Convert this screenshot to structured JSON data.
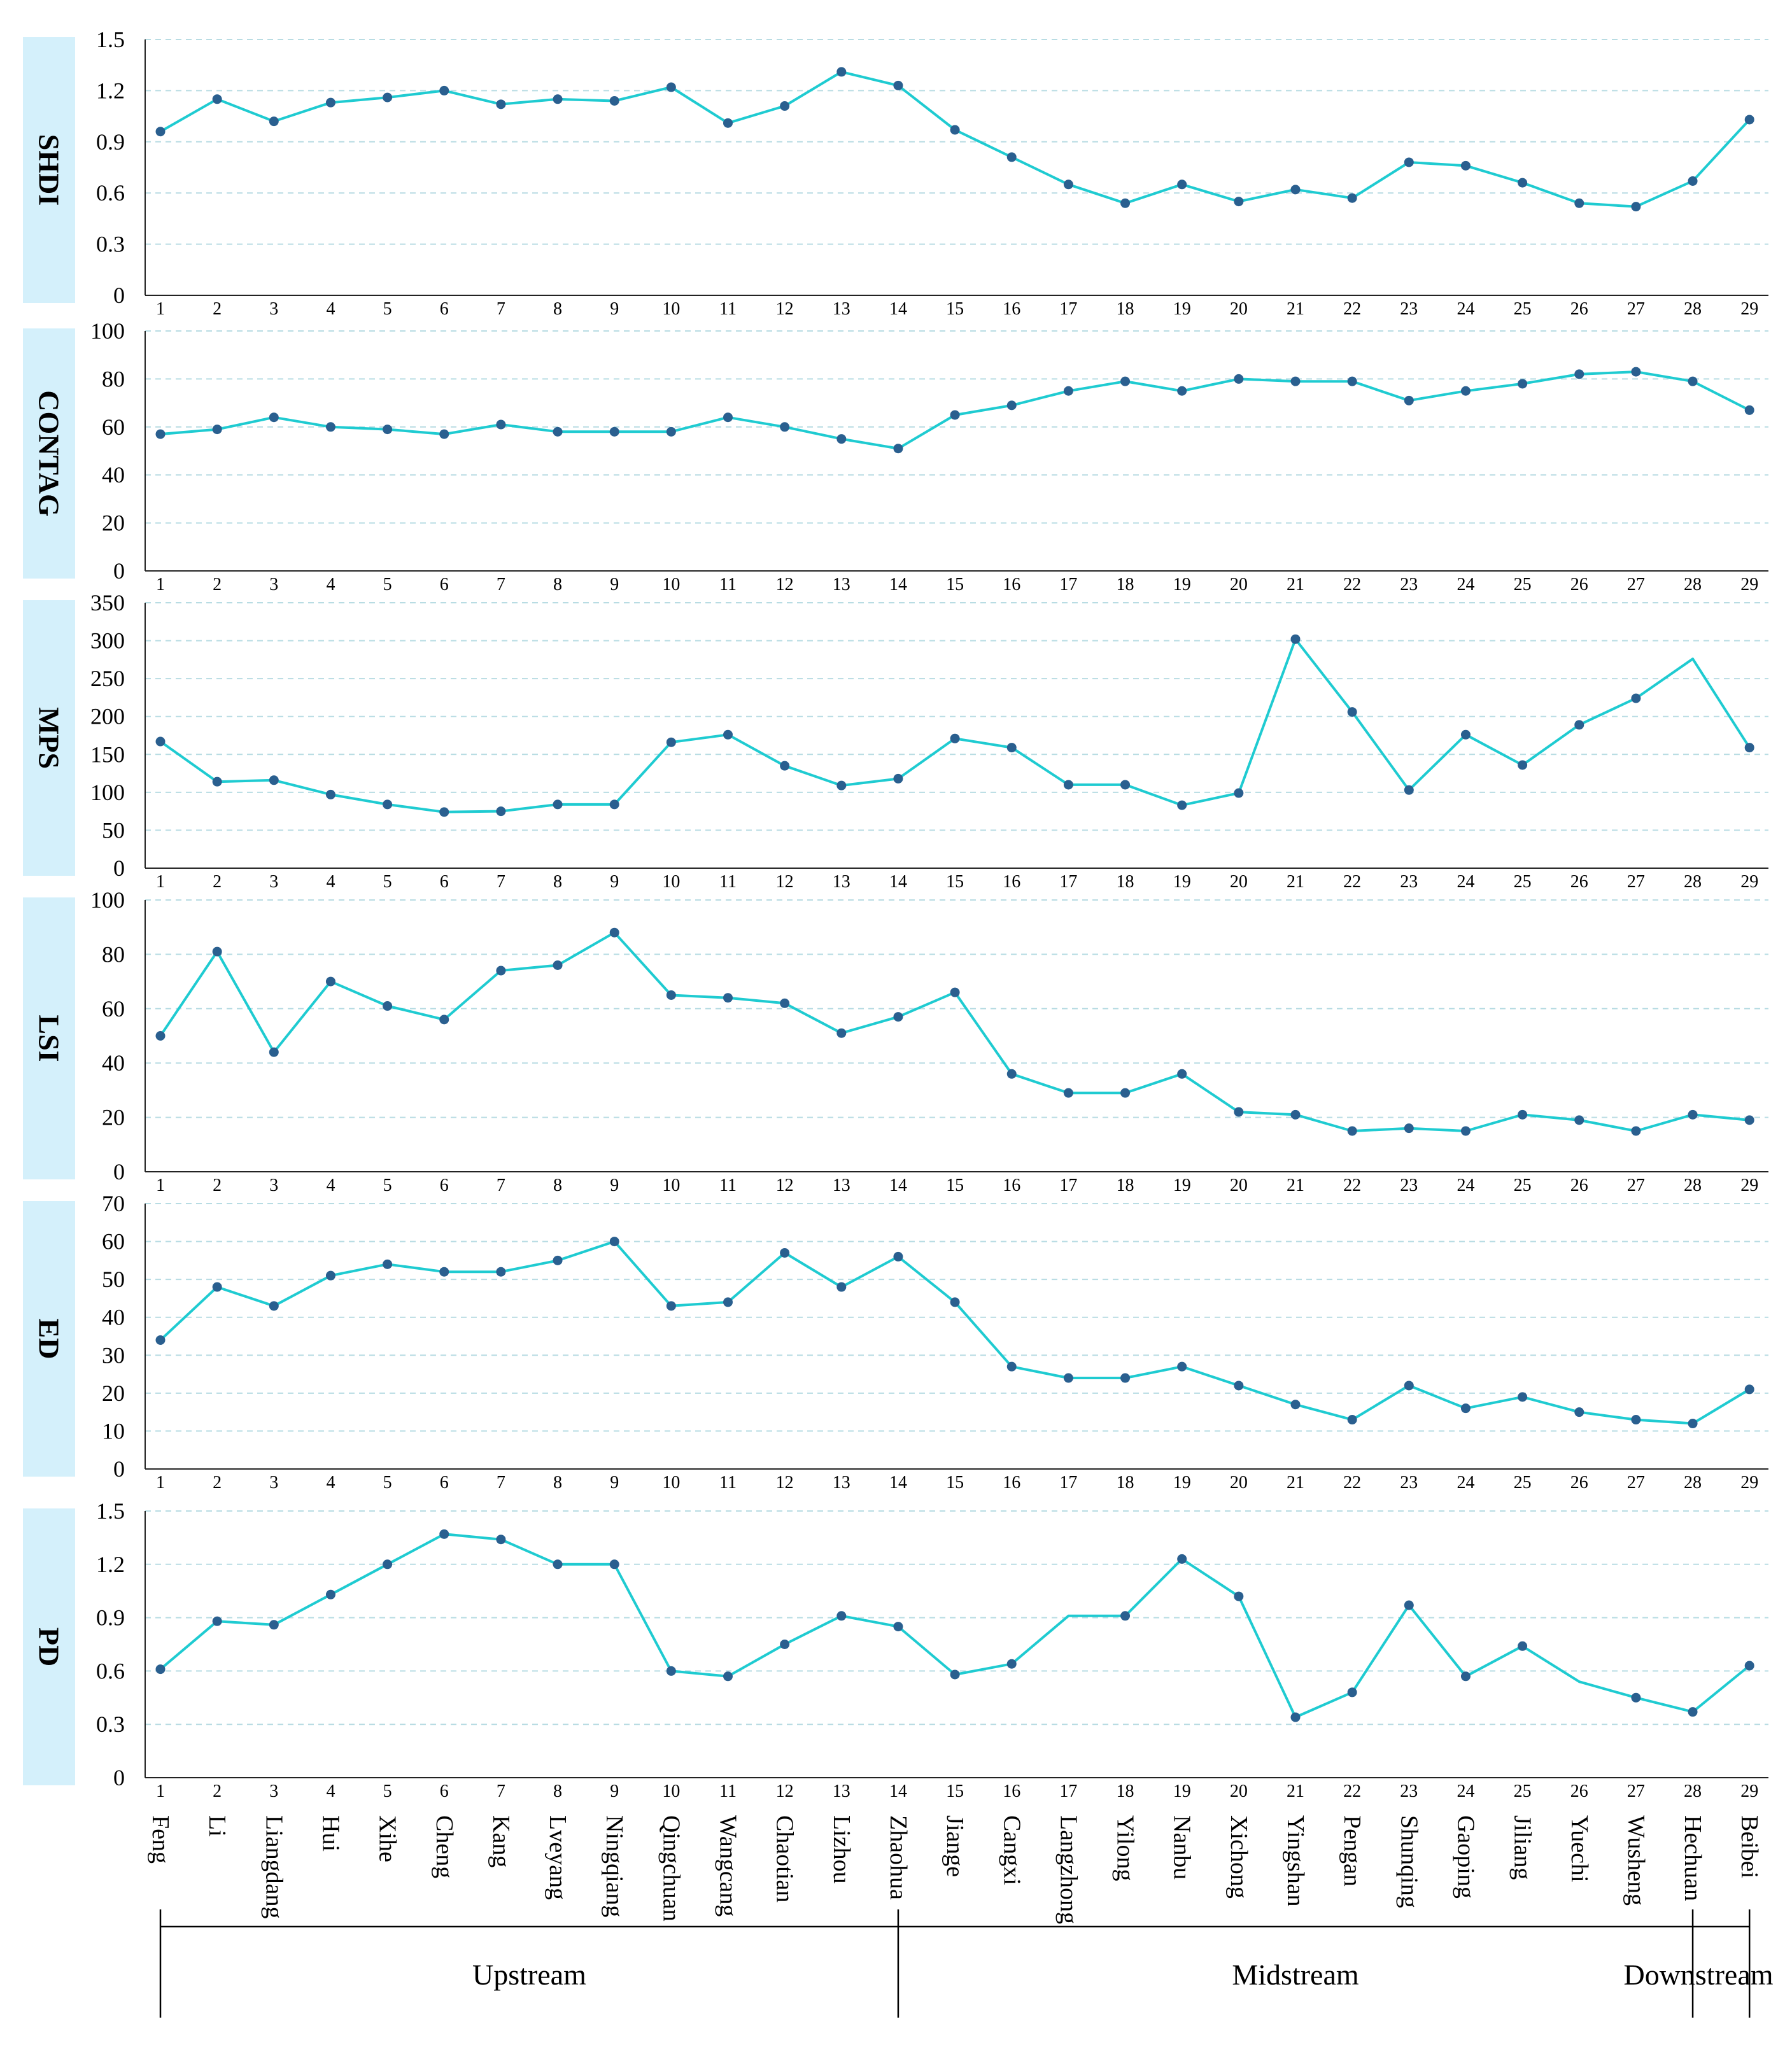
{
  "colors": {
    "line": "#1FCBD1",
    "marker": "#2A5F8F",
    "label_box": "#D4F0FB",
    "grid": "#B8DCE3",
    "axis": "#222222"
  },
  "chart_data": [
    {
      "type": "line",
      "ylabel": "SHDI",
      "ylim": [
        0,
        1.5
      ],
      "yticks": [
        0,
        0.3,
        0.6,
        0.9,
        1.2,
        1.5
      ],
      "ytick_labels": [
        "0",
        "0.3",
        "0.6",
        "0.9",
        "1.2",
        "1.5"
      ],
      "values": [
        0.96,
        1.15,
        1.02,
        1.13,
        1.16,
        1.2,
        1.12,
        1.15,
        1.14,
        1.22,
        1.01,
        1.11,
        1.31,
        1.23,
        0.97,
        0.81,
        0.65,
        0.54,
        0.65,
        0.55,
        0.62,
        0.57,
        0.78,
        0.76,
        0.66,
        0.54,
        0.52,
        0.67,
        1.03
      ],
      "no_marker": []
    },
    {
      "type": "line",
      "ylabel": "CONTAG",
      "ylim": [
        0,
        100
      ],
      "yticks": [
        0,
        20,
        40,
        60,
        80,
        100
      ],
      "ytick_labels": [
        "0",
        "20",
        "40",
        "60",
        "80",
        "100"
      ],
      "values": [
        57,
        59,
        64,
        60,
        59,
        57,
        61,
        58,
        58,
        58,
        64,
        60,
        55,
        51,
        65,
        69,
        75,
        79,
        75,
        80,
        79,
        79,
        71,
        75,
        78,
        82,
        83,
        79,
        67
      ],
      "no_marker": []
    },
    {
      "type": "line",
      "ylabel": "MPS",
      "ylim": [
        0,
        350
      ],
      "yticks": [
        0,
        50,
        100,
        150,
        200,
        250,
        300,
        350
      ],
      "ytick_labels": [
        "0",
        "50",
        "100",
        "150",
        "200",
        "250",
        "300",
        "350"
      ],
      "values": [
        167,
        114,
        116,
        97,
        84,
        74,
        75,
        84,
        84,
        166,
        176,
        135,
        109,
        118,
        171,
        159,
        110,
        110,
        83,
        99,
        302,
        206,
        103,
        176,
        136,
        189,
        224,
        276,
        159
      ],
      "no_marker": [
        27
      ]
    },
    {
      "type": "line",
      "ylabel": "LSI",
      "ylim": [
        0,
        100
      ],
      "yticks": [
        0,
        20,
        40,
        60,
        80,
        100
      ],
      "ytick_labels": [
        "0",
        "20",
        "40",
        "60",
        "80",
        "100"
      ],
      "values": [
        50,
        81,
        44,
        70,
        61,
        56,
        74,
        76,
        88,
        65,
        64,
        62,
        51,
        57,
        66,
        36,
        29,
        29,
        36,
        22,
        21,
        15,
        16,
        15,
        21,
        19,
        15,
        21,
        19
      ],
      "no_marker": []
    },
    {
      "type": "line",
      "ylabel": "ED",
      "ylim": [
        0,
        70
      ],
      "yticks": [
        0,
        10,
        20,
        30,
        40,
        50,
        60,
        70
      ],
      "ytick_labels": [
        "0",
        "10",
        "20",
        "30",
        "40",
        "50",
        "60",
        "70"
      ],
      "values": [
        34,
        48,
        43,
        51,
        54,
        52,
        52,
        55,
        60,
        43,
        44,
        57,
        48,
        56,
        44,
        27,
        24,
        24,
        27,
        22,
        17,
        13,
        22,
        16,
        19,
        15,
        13,
        12,
        21
      ],
      "no_marker": []
    },
    {
      "type": "line",
      "ylabel": "PD",
      "ylim": [
        0,
        1.5
      ],
      "yticks": [
        0,
        0.3,
        0.6,
        0.9,
        1.2,
        1.5
      ],
      "ytick_labels": [
        "0",
        "0.3",
        "0.6",
        "0.9",
        "1.2",
        "1.5"
      ],
      "values": [
        0.61,
        0.88,
        0.86,
        1.03,
        1.2,
        1.37,
        1.34,
        1.2,
        1.2,
        0.6,
        0.57,
        0.75,
        0.91,
        0.85,
        0.58,
        0.64,
        0.91,
        0.91,
        1.23,
        1.02,
        0.34,
        0.48,
        0.97,
        0.57,
        0.74,
        0.54,
        0.45,
        0.37,
        0.63
      ],
      "no_marker": [
        16,
        25
      ]
    }
  ],
  "x_numbers": [
    "1",
    "2",
    "3",
    "4",
    "5",
    "6",
    "7",
    "8",
    "9",
    "10",
    "11",
    "12",
    "13",
    "14",
    "15",
    "16",
    "17",
    "18",
    "19",
    "20",
    "21",
    "22",
    "23",
    "24",
    "25",
    "26",
    "27",
    "28",
    "29"
  ],
  "x_names": [
    "Feng",
    "Li",
    "Liangdang",
    "Hui",
    "Xihe",
    "Cheng",
    "Kang",
    "Lveyang",
    "Ningqiang",
    "Qingchuan",
    "Wangcang",
    "Chaotian",
    "Lizhou",
    "Zhaohua",
    "Jiange",
    "Cangxi",
    "Langzhong",
    "Yilong",
    "Nanbu",
    "Xichong",
    "Yingshan",
    "Pengan",
    "Shunqing",
    "Gaoping",
    "Jiliang",
    "Yuechi",
    "Wusheng",
    "Hechuan",
    "Beibei"
  ],
  "regions": [
    {
      "label": "Upstream",
      "from": 1,
      "to": 14
    },
    {
      "label": "Midstream",
      "from": 14,
      "to": 28
    },
    {
      "label": "Downstream",
      "from": 28,
      "to": 29
    }
  ]
}
